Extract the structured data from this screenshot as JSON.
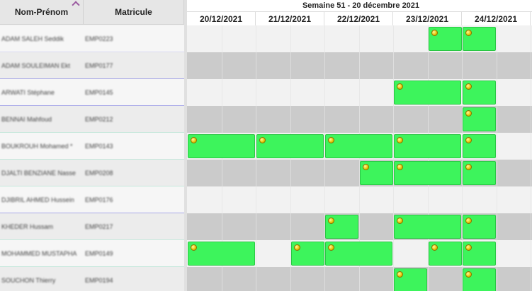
{
  "header": {
    "name_label": "Nom-Prénom",
    "matricule_label": "Matricule",
    "week_title": "Semaine 51 - 20 décembre 2021"
  },
  "days": [
    "20/12/2021",
    "21/12/2021",
    "22/12/2021",
    "23/12/2021",
    "24/12/2021"
  ],
  "employees": [
    {
      "name": "ADAM SALEH Seddik",
      "matricule": "EMP0223"
    },
    {
      "name": "ADAM SOULEIMAN Ekt",
      "matricule": "EMP0177"
    },
    {
      "name": "ARWATI Stéphane",
      "matricule": "EMP0145"
    },
    {
      "name": "BENNAI Mahfoud",
      "matricule": "EMP0212"
    },
    {
      "name": "BOUKROUH Mohamed *",
      "matricule": "EMP0143"
    },
    {
      "name": "DJALTI BENZIANE Nasse",
      "matricule": "EMP0208"
    },
    {
      "name": "DJIBRIL AHMED Hussein",
      "matricule": "EMP0176"
    },
    {
      "name": "KHEDER Hussam",
      "matricule": "EMP0217"
    },
    {
      "name": "MOHAMMED MUSTAPHA",
      "matricule": "EMP0149"
    },
    {
      "name": "SOUCHON Thierry",
      "matricule": "EMP0194"
    }
  ],
  "shifts": [
    [
      {
        "start": 7,
        "span": 1
      },
      {
        "start": 8,
        "span": 1
      }
    ],
    [],
    [
      {
        "start": 6,
        "span": 2
      },
      {
        "start": 8,
        "span": 1
      }
    ],
    [
      {
        "start": 8,
        "span": 1
      }
    ],
    [
      {
        "start": 0,
        "span": 2
      },
      {
        "start": 2,
        "span": 2
      },
      {
        "start": 4,
        "span": 2
      },
      {
        "start": 6,
        "span": 2
      },
      {
        "start": 8,
        "span": 1
      }
    ],
    [
      {
        "start": 5,
        "span": 1
      },
      {
        "start": 6,
        "span": 2
      },
      {
        "start": 8,
        "span": 1
      }
    ],
    [],
    [
      {
        "start": 4,
        "span": 1
      },
      {
        "start": 6,
        "span": 2
      },
      {
        "start": 8,
        "span": 1
      }
    ],
    [
      {
        "start": 0,
        "span": 2
      },
      {
        "start": 3,
        "span": 1
      },
      {
        "start": 4,
        "span": 2
      },
      {
        "start": 7,
        "span": 1
      },
      {
        "start": 8,
        "span": 1
      }
    ],
    [
      {
        "start": 6,
        "span": 1
      },
      {
        "start": 8,
        "span": 1
      }
    ]
  ],
  "underline_colors": [
    "#d8d8f0",
    "#a8a8e8",
    "#a8a8e8",
    "#c6e8dc",
    "#c6e8dc",
    "#c6e8dc",
    "#a8a8e8",
    "#c6e8dc",
    "#c6e8dc",
    "#e8e8e8"
  ]
}
